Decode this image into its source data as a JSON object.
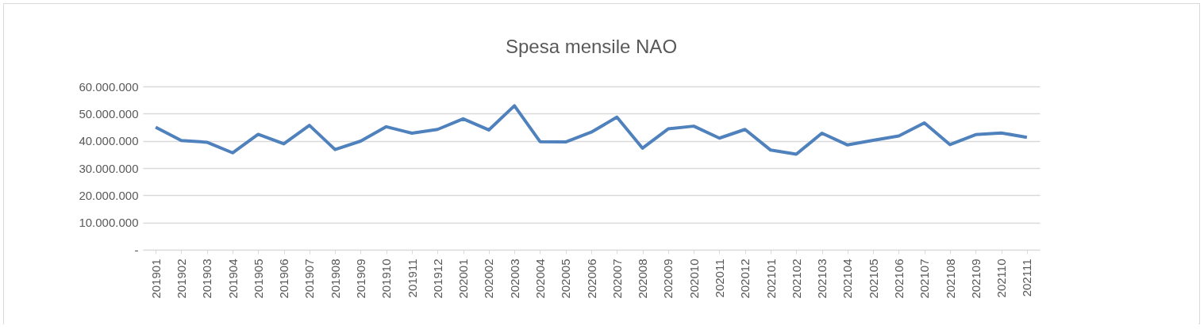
{
  "chart_data": {
    "type": "line",
    "title": "Spesa mensile NAO",
    "categories": [
      "201901",
      "201902",
      "201903",
      "201904",
      "201905",
      "201906",
      "201907",
      "201908",
      "201909",
      "201910",
      "201911",
      "201912",
      "202001",
      "202002",
      "202003",
      "202004",
      "202005",
      "202006",
      "202007",
      "202008",
      "202009",
      "202010",
      "202011",
      "202012",
      "202101",
      "202102",
      "202103",
      "202104",
      "202105",
      "202106",
      "202107",
      "202108",
      "202109",
      "202110",
      "202111"
    ],
    "series": [
      {
        "color": "#4f81bd",
        "values": [
          45000000,
          40100000,
          39500000,
          35600000,
          42400000,
          38900000,
          45700000,
          36800000,
          39900000,
          45200000,
          42800000,
          44200000,
          48100000,
          44000000,
          52900000,
          39700000,
          39600000,
          43200000,
          48700000,
          37300000,
          44400000,
          45400000,
          41000000,
          44200000,
          36600000,
          35100000,
          42800000,
          38500000,
          40200000,
          41800000,
          46600000,
          38600000,
          42300000,
          42900000,
          41300000
        ]
      }
    ],
    "ylim": [
      0,
      60000000
    ],
    "yticks": [
      {
        "value": 0,
        "label": "-"
      },
      {
        "value": 10000000,
        "label": "10.000.000"
      },
      {
        "value": 20000000,
        "label": "20.000.000"
      },
      {
        "value": 30000000,
        "label": "30.000.000"
      },
      {
        "value": 40000000,
        "label": "40.000.000"
      },
      {
        "value": 50000000,
        "label": "50.000.000"
      },
      {
        "value": 60000000,
        "label": "60.000.000"
      }
    ],
    "grid": "y",
    "marker": "none",
    "line_style": "solid"
  }
}
